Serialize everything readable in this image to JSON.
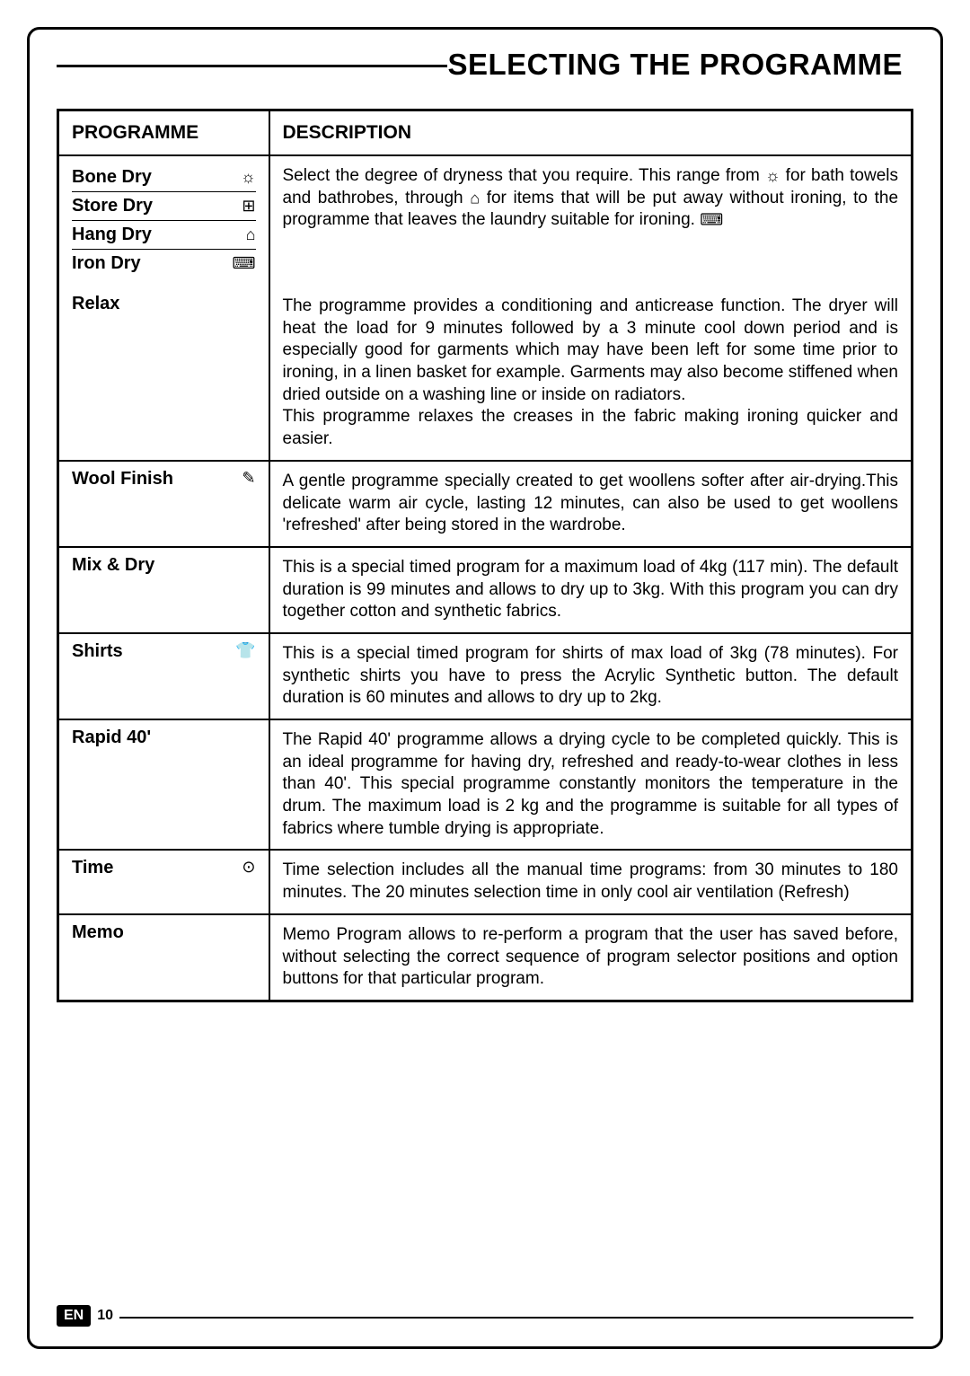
{
  "page": {
    "title": "SELECTING THE PROGRAMME",
    "lang_badge": "EN",
    "page_number": "10"
  },
  "table": {
    "header_programme": "PROGRAMME",
    "header_description": "DESCRIPTION",
    "rows": [
      {
        "multi": true,
        "programmes": [
          {
            "name": "Bone Dry",
            "icon": "☼"
          },
          {
            "name": "Store Dry",
            "icon": "⊞"
          },
          {
            "name": "Hang Dry",
            "icon": "⌂"
          },
          {
            "name": "Iron Dry",
            "icon": "⌨"
          }
        ],
        "description_parts": {
          "pre": "Select the degree of dryness that you require. This range from ",
          "icon1": "☼",
          "mid": " for bath towels and bathrobes, through ",
          "icon2": "⌂",
          "post": " for items that will be put away without ironing, to the programme that leaves the laundry suitable for ironing. ",
          "icon3": "⌨"
        }
      },
      {
        "programme": "Relax",
        "icon": "",
        "description": "The programme provides a conditioning and anticrease function. The dryer will heat the load for 9 minutes followed by a 3 minute cool down period and is especially good for garments which may have been left for some time prior to ironing, in a linen basket for example. Garments may also become stiffened when dried outside on a washing line or inside on radiators.\nThis programme relaxes the creases in the fabric making ironing quicker and easier."
      },
      {
        "programme": "Wool Finish",
        "icon": "✎",
        "description": "A gentle programme specially created to get woollens softer after air-drying.This delicate warm air cycle, lasting 12 minutes, can also be used to get woollens 'refreshed' after being stored in the wardrobe."
      },
      {
        "programme": "Mix & Dry",
        "icon": "",
        "description": "This is a special timed program for a maximum load of 4kg (117 min). The default duration is 99 minutes and allows to dry up to 3kg. With this program you can dry together cotton and synthetic fabrics."
      },
      {
        "programme": "Shirts",
        "icon": "👕",
        "description": "This is a special timed program for shirts of max load of 3kg (78 minutes). For synthetic shirts you have to press the Acrylic Synthetic button.  The default duration is 60 minutes and allows to dry up to 2kg."
      },
      {
        "programme": "Rapid 40'",
        "icon": "",
        "description": "The  Rapid 40' programme allows a drying cycle to be completed quickly. This is an ideal programme for having dry, refreshed and ready-to-wear clothes in less than 40'. This special programme constantly monitors the temperature in the drum. The maximum load is 2 kg and the programme is suitable for all types of fabrics where tumble drying is appropriate."
      },
      {
        "programme": "Time",
        "icon": "⊙",
        "description": "Time selection includes all the manual time programs: from 30 minutes to 180 minutes. The 20 minutes selection time in only cool air ventilation (Refresh)"
      },
      {
        "programme": "Memo",
        "icon": "",
        "description": "Memo Program allows to re-perform a program that the user has saved before, without selecting the correct sequence of program selector positions and option buttons for that particular program."
      }
    ]
  }
}
